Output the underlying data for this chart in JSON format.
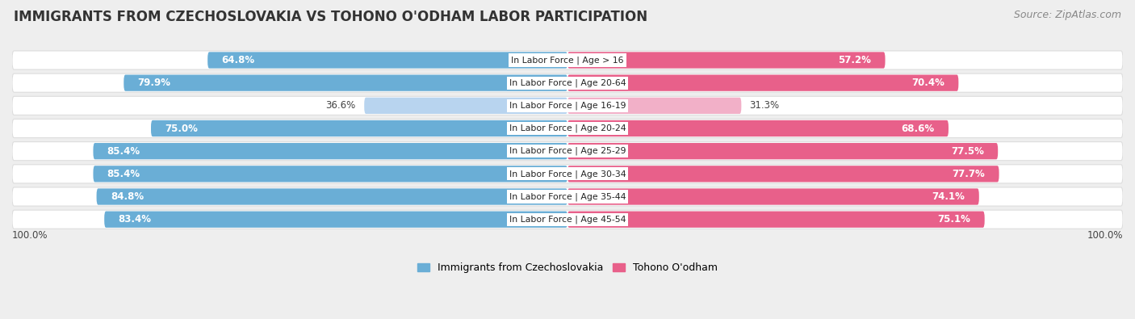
{
  "title": "IMMIGRANTS FROM CZECHOSLOVAKIA VS TOHONO O'ODHAM LABOR PARTICIPATION",
  "source": "Source: ZipAtlas.com",
  "categories": [
    "In Labor Force | Age > 16",
    "In Labor Force | Age 20-64",
    "In Labor Force | Age 16-19",
    "In Labor Force | Age 20-24",
    "In Labor Force | Age 25-29",
    "In Labor Force | Age 30-34",
    "In Labor Force | Age 35-44",
    "In Labor Force | Age 45-54"
  ],
  "left_values": [
    64.8,
    79.9,
    36.6,
    75.0,
    85.4,
    85.4,
    84.8,
    83.4
  ],
  "right_values": [
    57.2,
    70.4,
    31.3,
    68.6,
    77.5,
    77.7,
    74.1,
    75.1
  ],
  "left_color": "#6aaed6",
  "right_color": "#e8608a",
  "left_color_light": "#b8d4ef",
  "right_color_light": "#f2b0c8",
  "left_label": "Immigrants from Czechoslovakia",
  "right_label": "Tohono O'odham",
  "background_color": "#eeeeee",
  "max_value": 100.0,
  "title_fontsize": 12,
  "source_fontsize": 9,
  "light_rows": [
    2
  ]
}
